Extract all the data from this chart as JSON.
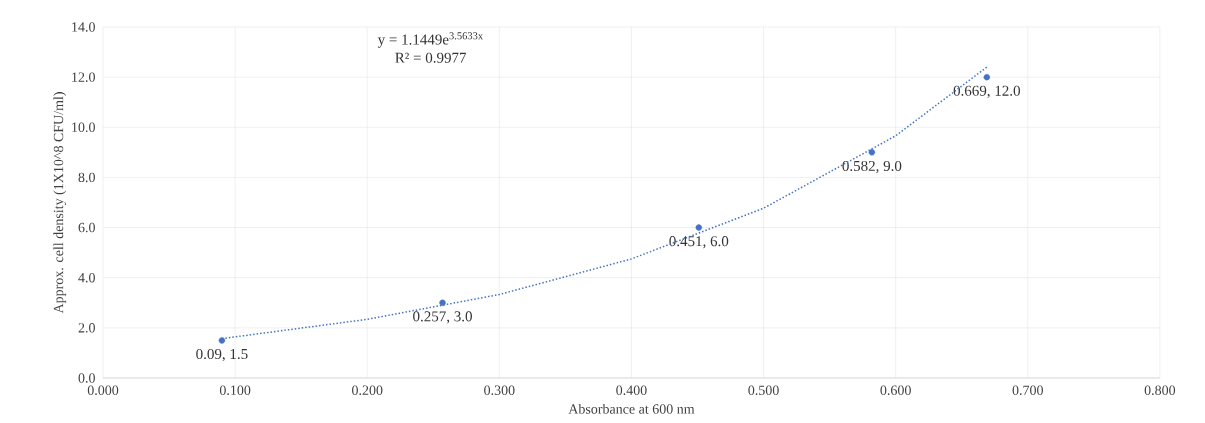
{
  "chart_data": {
    "type": "scatter",
    "xlabel": "Absorbance at 600 nm",
    "ylabel": "Approx. cell density (1X10^8 CFU/ml)",
    "x": [
      0.09,
      0.257,
      0.451,
      0.582,
      0.669
    ],
    "series": [
      {
        "color": "#4472c4",
        "marker": "circle",
        "values": [
          1.5,
          3.0,
          6.0,
          9.0,
          12.0
        ],
        "value_labels": [
          "0.09, 1.5",
          "0.257, 3.0",
          "0.451, 6.0",
          "0.582, 9.0",
          "0.669, 12.0"
        ]
      },
      {
        "type": "line",
        "marker": "none",
        "color": "#4472c4",
        "line_style": "dotted",
        "x": [
          0.09,
          0.2,
          0.3,
          0.4,
          0.5,
          0.6,
          0.669
        ],
        "values": [
          1.57,
          2.34,
          3.33,
          4.75,
          6.77,
          9.66,
          12.4
        ]
      }
    ],
    "annotations": [
      "y = 1.1449e$^{3.5633x}$",
      "R² = 0.9977"
    ],
    "grid": true,
    "xlim": [
      0,
      0.8
    ],
    "xticks": [
      {
        "value": 0,
        "label": "0.000"
      },
      {
        "value": 0.1,
        "label": "0.100"
      },
      {
        "value": 0.2,
        "label": "0.200"
      },
      {
        "value": 0.3,
        "label": "0.300"
      },
      {
        "value": 0.4,
        "label": "0.400"
      },
      {
        "value": 0.5,
        "label": "0.500"
      },
      {
        "value": 0.6,
        "label": "0.600"
      },
      {
        "value": 0.7,
        "label": "0.700"
      },
      {
        "value": 0.8,
        "label": "0.800"
      }
    ],
    "ylim": [
      0,
      14
    ],
    "yticks": [
      {
        "value": 0,
        "label": "0.0"
      },
      {
        "value": 2,
        "label": "2.0"
      },
      {
        "value": 4,
        "label": "4.0"
      },
      {
        "value": 6,
        "label": "6.0"
      },
      {
        "value": 8,
        "label": "8.0"
      },
      {
        "value": 10,
        "label": "10.0"
      },
      {
        "value": 12,
        "label": "12.0"
      },
      {
        "value": 14,
        "label": "14.0"
      }
    ]
  }
}
